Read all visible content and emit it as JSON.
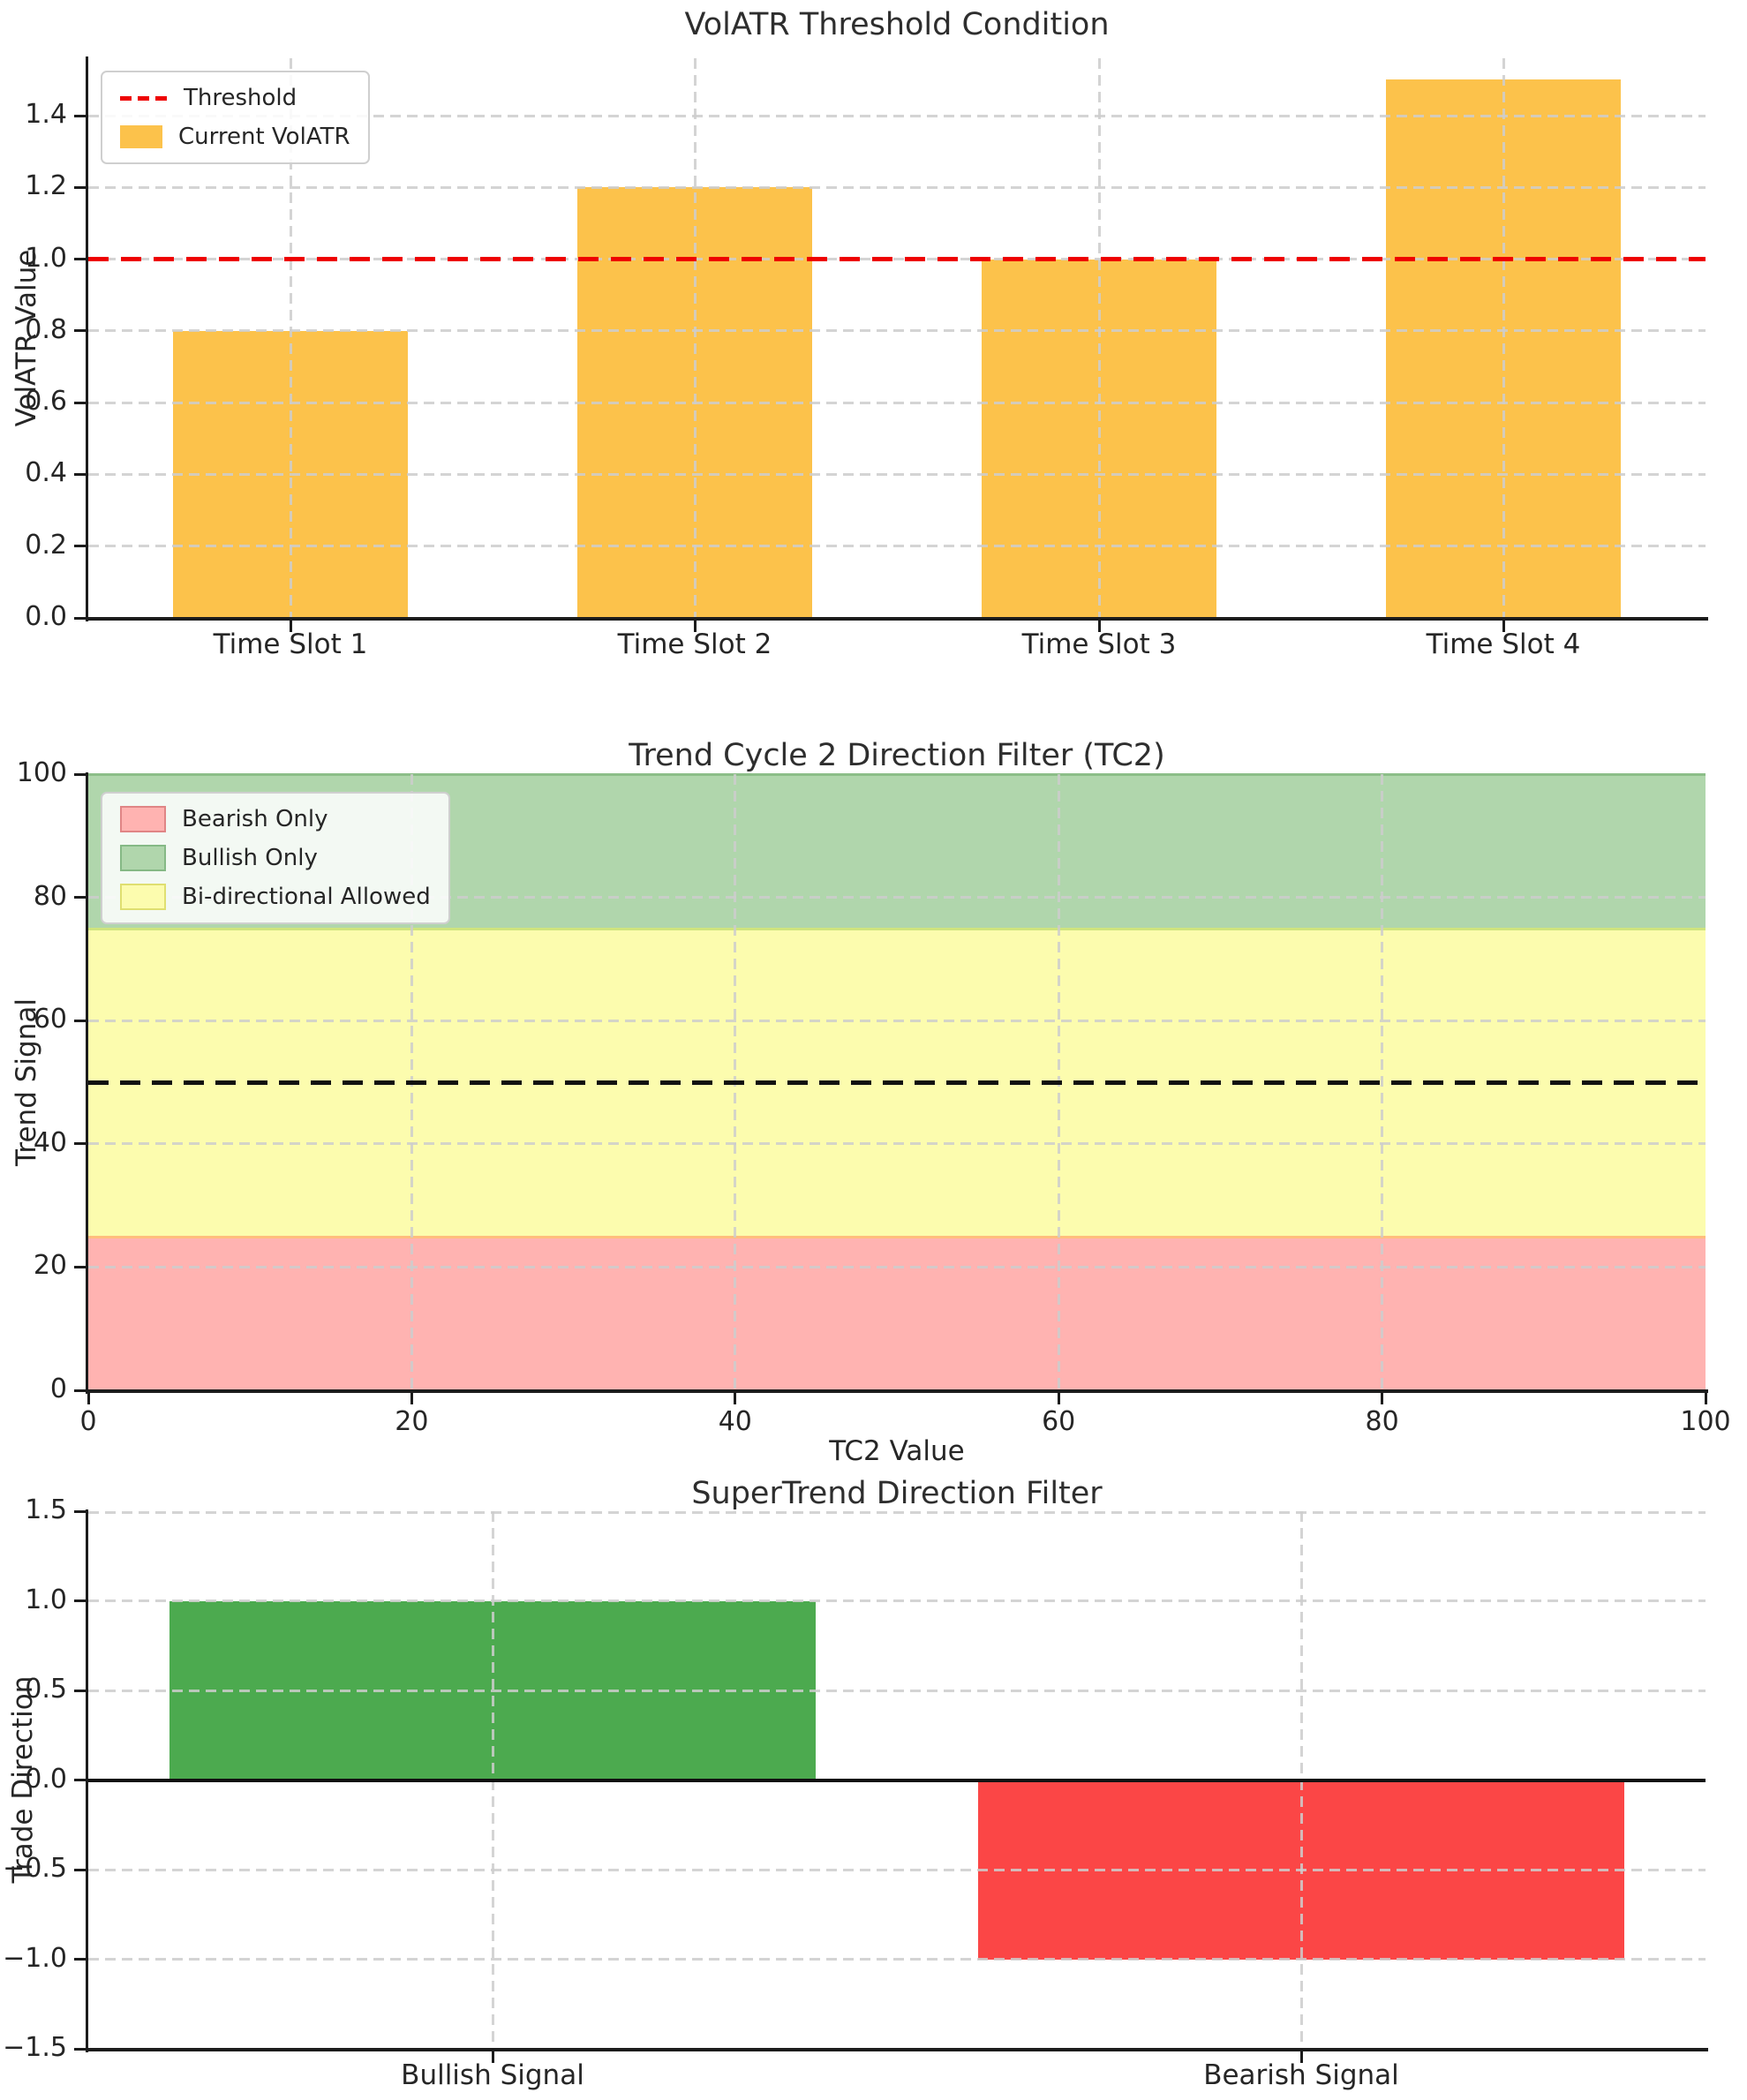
{
  "chart_data": [
    {
      "type": "bar",
      "title": "VolATR Threshold Condition",
      "ylabel": "VolATR Value",
      "categories": [
        "Time Slot 1",
        "Time Slot 2",
        "Time Slot 3",
        "Time Slot 4"
      ],
      "values": [
        0.8,
        1.2,
        1.0,
        1.5
      ],
      "bar_color": "#FCC24B",
      "threshold": {
        "value": 1.0,
        "color": "#EE0000",
        "style": "dashed"
      },
      "ylim": [
        0,
        1.56
      ],
      "yticks": [
        "0.0",
        "0.2",
        "0.4",
        "0.6",
        "0.8",
        "1.0",
        "1.2",
        "1.4"
      ],
      "ytick_values": [
        0,
        0.2,
        0.4,
        0.6,
        0.8,
        1.0,
        1.2,
        1.4
      ],
      "grid": true,
      "legend": {
        "position": "upper-left",
        "items": [
          {
            "label": "Threshold",
            "swatch": "dashed-line",
            "color": "#EE0000"
          },
          {
            "label": "Current VolATR",
            "swatch": "rect",
            "color": "#FCC24B"
          }
        ]
      }
    },
    {
      "type": "area",
      "title": "Trend Cycle 2 Direction Filter (TC2)",
      "xlabel": "TC2 Value",
      "ylabel": "Trend Signal",
      "xlim": [
        0,
        100
      ],
      "ylim": [
        0,
        100
      ],
      "xticks": [
        "0",
        "20",
        "40",
        "60",
        "80",
        "100"
      ],
      "xtick_values": [
        0,
        20,
        40,
        60,
        80,
        100
      ],
      "yticks": [
        "0",
        "20",
        "40",
        "60",
        "80",
        "100"
      ],
      "ytick_values": [
        0,
        20,
        40,
        60,
        80,
        100
      ],
      "bands": [
        {
          "label": "Bearish Only",
          "from": 0,
          "to": 25,
          "color": "#FFB3B1",
          "edge_color": "#FFBE7C"
        },
        {
          "label": "Bi-directional Allowed",
          "from": 25,
          "to": 75,
          "color": "#FCFCAE",
          "edge_color": "#CFE47D"
        },
        {
          "label": "Bullish Only",
          "from": 75,
          "to": 100,
          "color": "#B0D6AC",
          "edge_color": "#8CBE88"
        }
      ],
      "midline": {
        "value": 50,
        "color": "#111111",
        "style": "dashed"
      },
      "grid": true,
      "legend": {
        "position": "upper-left",
        "items": [
          {
            "label": "Bearish Only",
            "color": "#FFB3B1",
            "edge": "#E08585"
          },
          {
            "label": "Bullish Only",
            "color": "#B0D6AC",
            "edge": "#85B985"
          },
          {
            "label": "Bi-directional Allowed",
            "color": "#FCFCAE",
            "edge": "#DFDF70"
          }
        ]
      }
    },
    {
      "type": "bar",
      "title": "SuperTrend Direction Filter",
      "ylabel": "Trade Direction",
      "categories": [
        "Bullish Signal",
        "Bearish Signal"
      ],
      "values": [
        1.0,
        -1.0
      ],
      "bar_colors": [
        "#4CAA4F",
        "#FB4646"
      ],
      "ylim": [
        -1.5,
        1.5
      ],
      "yticks": [
        "1.5",
        "1.0",
        "0.5",
        "0.0",
        "−0.5",
        "−1.0",
        "−1.5"
      ],
      "ytick_values": [
        1.5,
        1.0,
        0.5,
        0.0,
        -0.5,
        -1.0,
        -1.5
      ],
      "zero_line": true,
      "grid": true
    }
  ]
}
